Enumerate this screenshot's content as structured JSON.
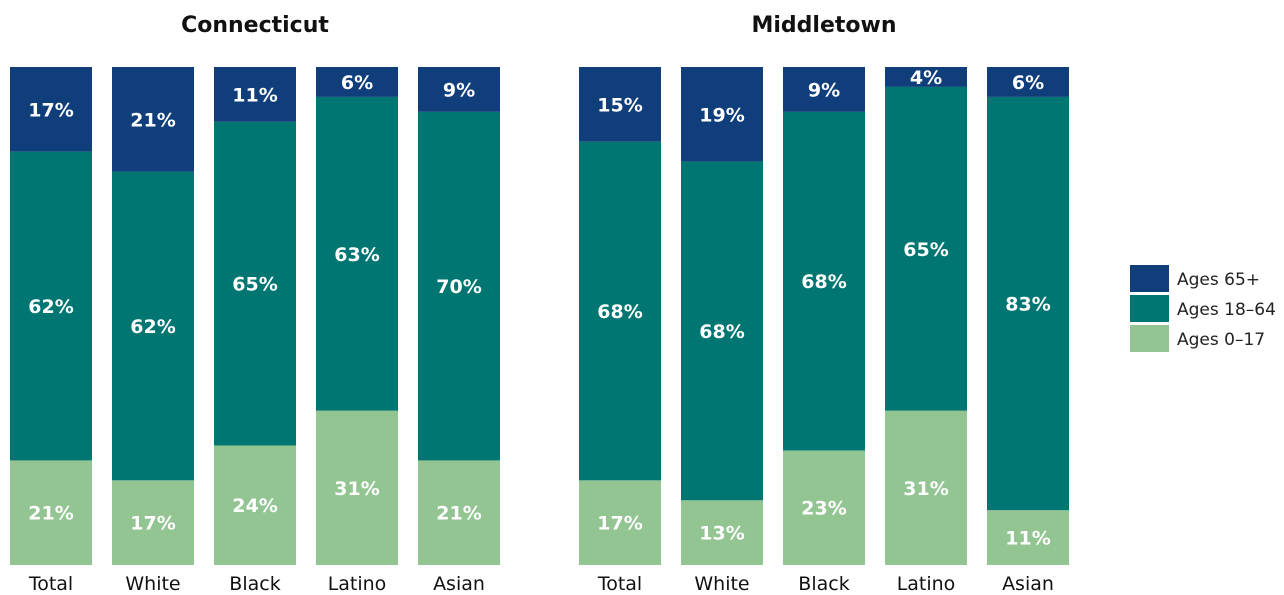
{
  "chart_data": [
    {
      "type": "bar",
      "stacked": true,
      "title": "Connecticut",
      "categories": [
        "Total",
        "White",
        "Black",
        "Latino",
        "Asian"
      ],
      "ylim": [
        0,
        100
      ],
      "series": [
        {
          "name": "Ages 0–17",
          "color": "#93c593",
          "values": [
            21,
            17,
            24,
            31,
            21
          ]
        },
        {
          "name": "Ages 18–64",
          "color": "#007672",
          "values": [
            62,
            62,
            65,
            63,
            70
          ]
        },
        {
          "name": "Ages 65+",
          "color": "#0f3e7b",
          "values": [
            17,
            21,
            11,
            6,
            9
          ]
        }
      ]
    },
    {
      "type": "bar",
      "stacked": true,
      "title": "Middletown",
      "categories": [
        "Total",
        "White",
        "Black",
        "Latino",
        "Asian"
      ],
      "ylim": [
        0,
        100
      ],
      "series": [
        {
          "name": "Ages 0–17",
          "color": "#93c593",
          "values": [
            17,
            13,
            23,
            31,
            11
          ]
        },
        {
          "name": "Ages 18–64",
          "color": "#007672",
          "values": [
            68,
            68,
            68,
            65,
            83
          ]
        },
        {
          "name": "Ages 65+",
          "color": "#0f3e7b",
          "values": [
            15,
            19,
            9,
            4,
            6
          ]
        }
      ]
    }
  ],
  "legend": {
    "placement": "right",
    "items": [
      {
        "label": "Ages 65+",
        "color": "#0f3e7b"
      },
      {
        "label": "Ages 18–64",
        "color": "#007672"
      },
      {
        "label": "Ages 0–17",
        "color": "#93c593"
      }
    ]
  }
}
